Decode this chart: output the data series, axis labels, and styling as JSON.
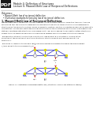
{
  "title_module": "Module 4: Deflection of Structures",
  "title_lecture": "Lecture 6: Maxwell-Betti Law of Reciprocal Deflections",
  "section_outcomes": "Outcomes:",
  "bullet1": "Maxwell-Betti law of reciprocal deflection",
  "bullet2": "Illustrative examples for proving law of reciprocal deflection",
  "section1_title": "1. Maxwell-Betti Law of Reciprocal Deflections",
  "body_line1": "Maxwell-Betti law of reciprocity is a basic theorem in the structural analysis. Using this theorem, it will be",
  "body_line2": "established that the flexibility coefficients in compatibility equations, formulated to solve indeterminate",
  "body_line3": "structures by the flexibility method, obeys a symmetry relation, and this circumstance reduces the amount of",
  "body_line4": "computation. The Maxwell-Betti law also has applications in the construction of influence lines diagrams for",
  "body_line5": "statically indeterminate structures. The Maxwell-Betti law, which applies to any elastic system structure of",
  "body_line6": "beams, truss, or frame, for example, an engineering support such as a bridge, states the following:",
  "mid_line1": "The deflection at point A in structure 1 due to unit load at point B in structure 1 is equal to the",
  "mid_line2": "deflection at the deflection at point B in structure 1 structure due to unit applied load at A in",
  "mid_line3": "structure 1.",
  "formula_intro": "The Figure 1.1 explains the Maxwell-Betti law of reciprocal displacement in which the displacement",
  "formula_fab": "f_AB is equal to the displacement f_BA",
  "fig_caption": "Figure 1.1 Illustration of Maxwell-Betti Law (Structure 1 and 2 are statically stable)",
  "truss_blue": "#3333bb",
  "truss_yellow": "#dddd00",
  "arrow_red": "#cc2222",
  "bg_color": "#ffffff",
  "text_color": "#111111",
  "gray_line": "#aaaaaa"
}
